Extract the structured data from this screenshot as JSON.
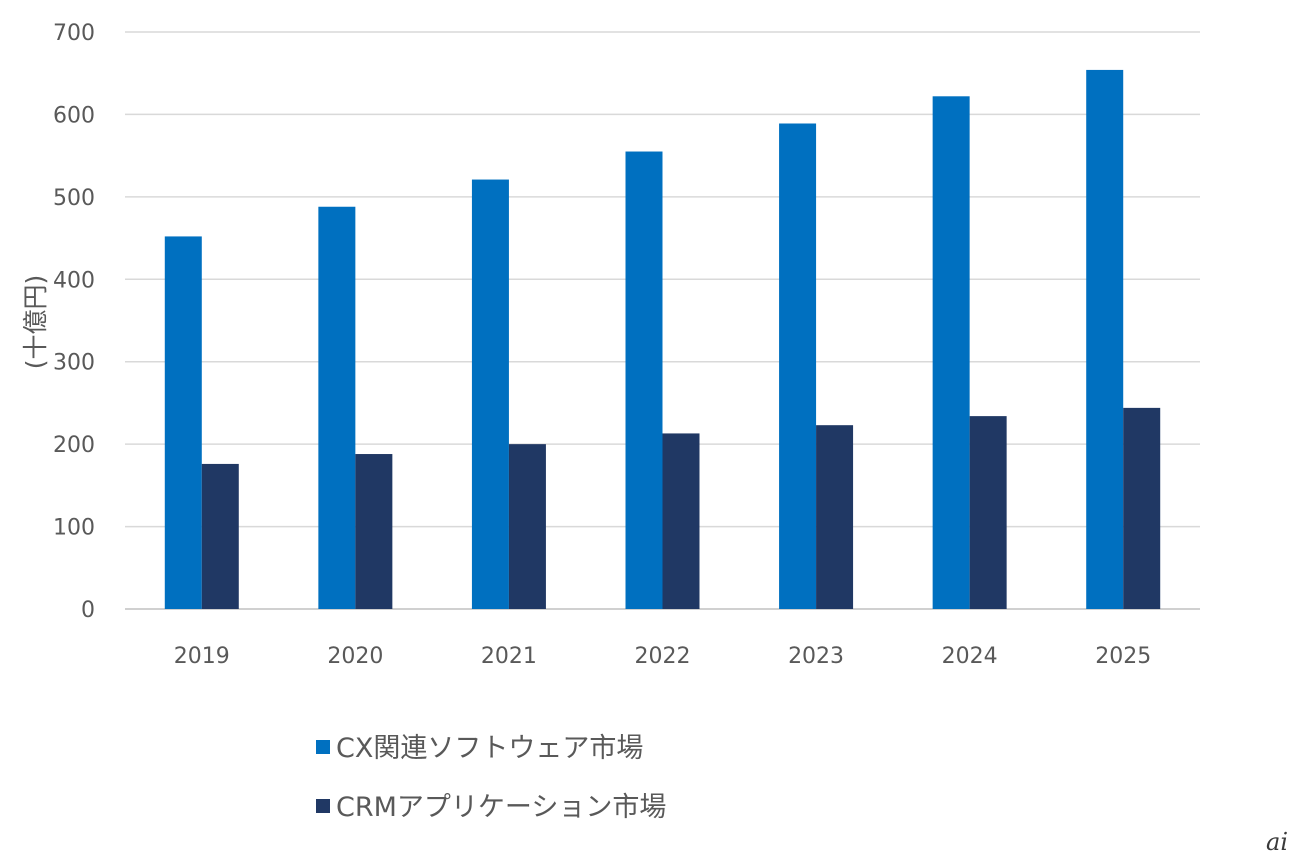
{
  "chart_data": {
    "type": "bar",
    "title": "",
    "xlabel": "",
    "ylabel": "(十億円)",
    "ylim": [
      0,
      700
    ],
    "yticks": [
      0,
      100,
      200,
      300,
      400,
      500,
      600,
      700
    ],
    "grid": true,
    "legend_position": "bottom",
    "categories": [
      "2019",
      "2020",
      "2021",
      "2022",
      "2023",
      "2024",
      "2025"
    ],
    "series": [
      {
        "name": "CX関連ソフトウェア市場",
        "color": "#0070C0",
        "values": [
          452,
          488,
          521,
          555,
          589,
          622,
          654
        ]
      },
      {
        "name": "CRMアプリケーション市場",
        "color": "#203864",
        "values": [
          176,
          188,
          200,
          213,
          223,
          234,
          244
        ]
      }
    ]
  },
  "watermark": "ai"
}
